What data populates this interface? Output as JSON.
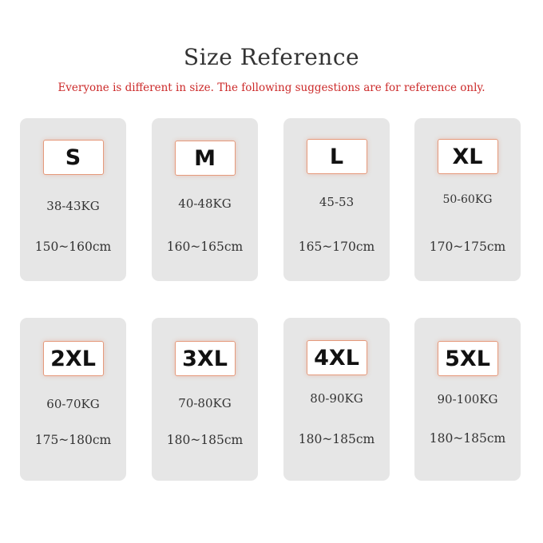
{
  "header": {
    "title": "Size Reference",
    "subtitle": "Everyone is different in size. The following suggestions are for reference only."
  },
  "sizes": [
    {
      "label": "S",
      "weight": "38-43KG",
      "height": "150~160cm"
    },
    {
      "label": "M",
      "weight": "40-48KG",
      "height": "160~165cm"
    },
    {
      "label": "L",
      "weight": "45-53",
      "height": "165~170cm"
    },
    {
      "label": "XL",
      "weight": "50-60KG",
      "height": "170~175cm"
    },
    {
      "label": "2XL",
      "weight": "60-70KG",
      "height": "175~180cm"
    },
    {
      "label": "3XL",
      "weight": "70-80KG",
      "height": "180~185cm"
    },
    {
      "label": "4XL",
      "weight": "80-90KG",
      "height": "180~185cm"
    },
    {
      "label": "5XL",
      "weight": "90-100KG",
      "height": "180~185cm"
    }
  ],
  "colors": {
    "subtitle": "#cc2a2a",
    "card_bg": "#e6e6e6",
    "size_border": "#e59a7c"
  }
}
